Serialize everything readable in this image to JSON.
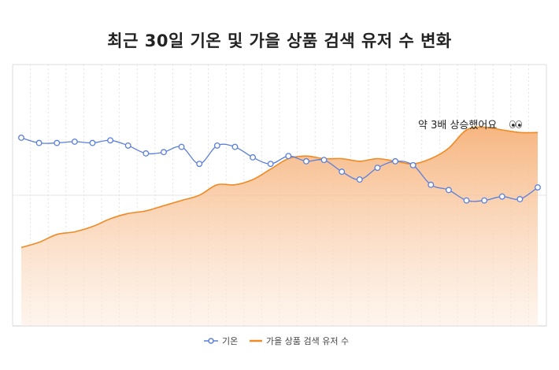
{
  "title": "최근 30일 기온 및 가을 상품 검색 유저 수 변화",
  "annotation": "약 3배 상승했어요",
  "annotation_icon": "eyes-emoji-icon",
  "colors": {
    "temperature": "#5b7fdb",
    "search": "#f08a24",
    "search_fill_top": "#f6b27a",
    "search_fill_bottom": "#fdeee2",
    "grid": "#dddddd"
  },
  "chart_data": {
    "type": "line",
    "title": "최근 30일 기온 및 가을 상품 검색 유저 수 변화",
    "xlabel": "",
    "ylabel": "",
    "grid": true,
    "legend_position": "bottom-center",
    "x": [
      1,
      2,
      3,
      4,
      5,
      6,
      7,
      8,
      9,
      10,
      11,
      12,
      13,
      14,
      15,
      16,
      17,
      18,
      19,
      20,
      21,
      22,
      23,
      24,
      25,
      26,
      27,
      28,
      29,
      30
    ],
    "ylim": [
      0,
      100
    ],
    "series": [
      {
        "name": "기온",
        "type": "line",
        "markers": true,
        "values": [
          72,
          70,
          70,
          70.5,
          70,
          71,
          69,
          66,
          66.5,
          68.5,
          62,
          69,
          68.5,
          64.5,
          62,
          65,
          63,
          63.5,
          59,
          56,
          60.5,
          63,
          61.5,
          54,
          52,
          48,
          48,
          49.5,
          48.5,
          53
        ]
      },
      {
        "name": "가을 상품 검색 유저 수",
        "type": "area",
        "markers": false,
        "values": [
          30,
          32,
          35,
          36,
          38,
          41,
          43,
          44,
          46,
          48,
          50,
          54,
          54,
          56,
          60,
          64,
          65,
          64,
          64,
          63,
          64,
          63,
          62,
          64,
          68,
          75,
          76,
          75,
          74,
          74
        ]
      }
    ]
  }
}
